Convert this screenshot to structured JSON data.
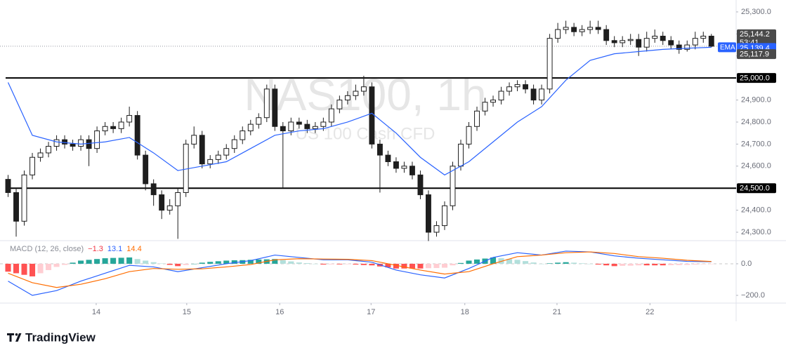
{
  "chart_data": [
    {
      "type": "candlestick",
      "title": "NAS100, 1h",
      "subtitle": "US 100 Cash CFD",
      "xlim": [
        -1,
        89.8
      ],
      "ylim": [
        24265,
        25354
      ],
      "yticks": [
        {
          "value": 24300,
          "label": "24,300.0"
        },
        {
          "value": 24400,
          "label": "24,400.0"
        },
        {
          "value": 24500,
          "label": "24,500.0"
        },
        {
          "value": 24600,
          "label": "24,600.0"
        },
        {
          "value": 24700,
          "label": "24,700.0"
        },
        {
          "value": 24800,
          "label": "24,800.0"
        },
        {
          "value": 24900,
          "label": "24,900.0"
        },
        {
          "value": 25000,
          "label": "25,000.0"
        },
        {
          "value": 25100,
          "label": "25,100.0"
        },
        {
          "value": 25200,
          "label": "25,200.0"
        },
        {
          "value": 25300,
          "label": "25,300.0"
        }
      ],
      "up_color": "#ffffff",
      "down_color": "#1e1e1e",
      "wick_color": "#1e1e1e",
      "open": [
        24540,
        24480,
        24350,
        24560,
        24640,
        24660,
        24690,
        24720,
        24700,
        24690,
        24720,
        24680,
        24760,
        24780,
        24770,
        24800,
        24830,
        24650,
        24520,
        24470,
        24400,
        24420,
        24480,
        24700,
        24740,
        24610,
        24630,
        24650,
        24680,
        24720,
        24760,
        24790,
        24820,
        24950,
        24780,
        24760,
        24800,
        24790,
        24770,
        24780,
        24800,
        24860,
        24900,
        24920,
        24940,
        24960,
        24700,
        24650,
        24620,
        24590,
        24600,
        24560,
        24470,
        24300,
        24330,
        24420,
        24600,
        24700,
        24780,
        24850,
        24890,
        24900,
        24940,
        24960,
        24970,
        24950,
        24900,
        24950,
        25180,
        25220,
        25230,
        25210,
        25220,
        25230,
        25220,
        25170,
        25160,
        25170,
        25175,
        25140,
        25180,
        25190,
        25170,
        25150,
        25130,
        25150,
        25180,
        25190
      ],
      "high": [
        24560,
        24500,
        24580,
        24660,
        24680,
        24710,
        24740,
        24740,
        24720,
        24740,
        24740,
        24780,
        24800,
        24800,
        24820,
        24870,
        24850,
        24670,
        24540,
        24490,
        24450,
        24500,
        24720,
        24780,
        24760,
        24650,
        24670,
        24700,
        24740,
        24780,
        24810,
        24840,
        24970,
        24970,
        24800,
        24820,
        24820,
        24810,
        24800,
        24820,
        24880,
        24920,
        24940,
        24970,
        25010,
        24980,
        24720,
        24670,
        24640,
        24620,
        24620,
        24580,
        24490,
        24350,
        24440,
        24620,
        24720,
        24800,
        24870,
        24910,
        24920,
        24960,
        24980,
        24990,
        24990,
        24970,
        24970,
        25200,
        25250,
        25260,
        25250,
        25240,
        25260,
        25260,
        25240,
        25190,
        25190,
        25200,
        25200,
        25210,
        25220,
        25210,
        25190,
        25170,
        25170,
        25210,
        25210,
        25200
      ],
      "low": [
        24460,
        24280,
        24330,
        24540,
        24620,
        24640,
        24670,
        24680,
        24670,
        24670,
        24600,
        24660,
        24740,
        24750,
        24750,
        24780,
        24630,
        24490,
        24420,
        24360,
        24380,
        24270,
        24460,
        24680,
        24590,
        24590,
        24610,
        24630,
        24660,
        24700,
        24740,
        24770,
        24800,
        24760,
        24500,
        24740,
        24770,
        24750,
        24750,
        24760,
        24780,
        24840,
        24880,
        24900,
        24920,
        24680,
        24480,
        24600,
        24570,
        24570,
        24540,
        24450,
        24260,
        24280,
        24310,
        24400,
        24580,
        24680,
        24760,
        24830,
        24870,
        24880,
        24920,
        24940,
        24930,
        24880,
        24880,
        24930,
        25160,
        25200,
        25190,
        25190,
        25200,
        25200,
        25150,
        25140,
        25140,
        25150,
        25100,
        25120,
        25160,
        25150,
        25130,
        25110,
        25120,
        25130,
        25160,
        25140
      ],
      "close": [
        24480,
        24350,
        24560,
        24640,
        24660,
        24690,
        24720,
        24700,
        24690,
        24720,
        24680,
        24760,
        24780,
        24770,
        24800,
        24830,
        24650,
        24520,
        24470,
        24400,
        24420,
        24480,
        24700,
        24740,
        24610,
        24630,
        24650,
        24680,
        24720,
        24760,
        24790,
        24820,
        24950,
        24780,
        24760,
        24800,
        24790,
        24770,
        24780,
        24800,
        24860,
        24900,
        24920,
        24940,
        24960,
        24700,
        24650,
        24620,
        24590,
        24600,
        24560,
        24470,
        24300,
        24330,
        24420,
        24600,
        24700,
        24780,
        24850,
        24890,
        24900,
        24940,
        24960,
        24970,
        24950,
        24900,
        24950,
        25180,
        25220,
        25230,
        25210,
        25220,
        25230,
        25220,
        25170,
        25160,
        25170,
        25175,
        25140,
        25180,
        25190,
        25170,
        25150,
        25130,
        25150,
        25180,
        25190,
        25144.2
      ],
      "series": [
        {
          "name": "EMA",
          "color": "#2962ff",
          "x": [
            0,
            3,
            6,
            9,
            12,
            15,
            18,
            21,
            24,
            27,
            30,
            33,
            36,
            39,
            42,
            45,
            48,
            51,
            54,
            57,
            60,
            63,
            66,
            69,
            72,
            75,
            78,
            81,
            84,
            87
          ],
          "values": [
            24980,
            24740,
            24710,
            24700,
            24710,
            24730,
            24660,
            24580,
            24600,
            24620,
            24680,
            24740,
            24760,
            24770,
            24800,
            24840,
            24750,
            24640,
            24560,
            24620,
            24710,
            24800,
            24870,
            24990,
            25080,
            25110,
            25120,
            25130,
            25135,
            25139.4
          ],
          "value_labels": [
            null,
            null,
            null,
            null,
            null,
            null,
            null,
            null,
            null,
            null,
            null,
            null,
            null,
            null,
            null,
            null,
            null,
            null,
            null,
            null,
            null,
            null,
            null,
            null,
            null,
            null,
            null,
            null,
            null,
            "25,139.4"
          ]
        }
      ],
      "hlines": [
        {
          "value": 25000,
          "label": "25,000.0",
          "color": "#000000"
        },
        {
          "value": 24500,
          "label": "24,500.0",
          "color": "#000000"
        }
      ],
      "last_price": {
        "value": 25144.2,
        "label": "25,144.2",
        "countdown": "53:41",
        "color": "#4a4a4a"
      },
      "extra_marker": {
        "value": 25117.9,
        "label": "25,117.9",
        "color": "#4a4a4a"
      }
    },
    {
      "type": "macd",
      "title": "MACD (12, 26, close)",
      "xlim": [
        -1,
        89.8
      ],
      "ylim": [
        -249,
        142
      ],
      "yticks": [
        {
          "value": 0,
          "label": "0.0"
        },
        {
          "value": -200,
          "label": "−200.0"
        }
      ],
      "xticks": [
        {
          "value": 10.9,
          "label": "14"
        },
        {
          "value": 22.1,
          "label": "15"
        },
        {
          "value": 33.6,
          "label": "16"
        },
        {
          "value": 44.9,
          "label": "17"
        },
        {
          "value": 56.5,
          "label": "18"
        },
        {
          "value": 67.9,
          "label": "21"
        },
        {
          "value": 79.4,
          "label": "22"
        }
      ],
      "histogram": {
        "name": "Histogram",
        "colors": [
          "#26a69a",
          "#b2dfdb",
          "#ff5252",
          "#ffcdd2"
        ],
        "values": [
          -50,
          -60,
          -70,
          -80,
          -60,
          -40,
          -20,
          -7,
          7,
          20,
          25,
          30,
          35,
          37,
          38,
          40,
          30,
          20,
          10,
          2,
          -7,
          -15,
          -8,
          0,
          7,
          12,
          16,
          20,
          22,
          23,
          25,
          27,
          28,
          30,
          23,
          15,
          8,
          4,
          0,
          -5,
          -4,
          -4,
          -3,
          -5,
          -8,
          -10,
          -17,
          -23,
          -30,
          -30,
          -30,
          -30,
          -28,
          -27,
          -25,
          -10,
          5,
          20,
          27,
          33,
          40,
          35,
          30,
          25,
          17,
          8,
          0,
          3,
          7,
          10,
          7,
          3,
          0,
          -5,
          -10,
          -15,
          -13,
          -12,
          -10,
          -10,
          -10,
          -10,
          -9,
          -8,
          -7,
          -5,
          -3,
          -1.3
        ],
        "legend_label": "−1.3",
        "legend_color": "#f23645"
      },
      "series": [
        {
          "name": "MACD",
          "color": "#2962ff",
          "legend_label": "13.1",
          "x": [
            0,
            3,
            6,
            9,
            12,
            15,
            18,
            21,
            24,
            27,
            30,
            33,
            36,
            39,
            42,
            45,
            48,
            51,
            54,
            57,
            60,
            63,
            66,
            69,
            72,
            75,
            78,
            81,
            84,
            87
          ],
          "values": [
            -110,
            -200,
            -170,
            -110,
            -60,
            -10,
            -20,
            -50,
            -25,
            0,
            20,
            55,
            40,
            25,
            25,
            10,
            -40,
            -70,
            -90,
            -30,
            40,
            70,
            55,
            80,
            75,
            50,
            35,
            25,
            15,
            13.1
          ]
        },
        {
          "name": "Signal",
          "color": "#ff6d00",
          "legend_label": "14.4",
          "x": [
            0,
            3,
            6,
            9,
            12,
            15,
            18,
            21,
            24,
            27,
            30,
            33,
            36,
            39,
            42,
            45,
            48,
            51,
            54,
            57,
            60,
            63,
            66,
            69,
            72,
            75,
            78,
            81,
            84,
            87
          ],
          "values": [
            -60,
            -120,
            -150,
            -130,
            -95,
            -50,
            -30,
            -35,
            -32,
            -20,
            -5,
            25,
            32,
            30,
            28,
            20,
            -10,
            -40,
            -65,
            -50,
            0,
            45,
            55,
            70,
            75,
            65,
            45,
            35,
            22,
            14.4
          ]
        }
      ]
    }
  ],
  "footer": {
    "brand": "TradingView"
  }
}
